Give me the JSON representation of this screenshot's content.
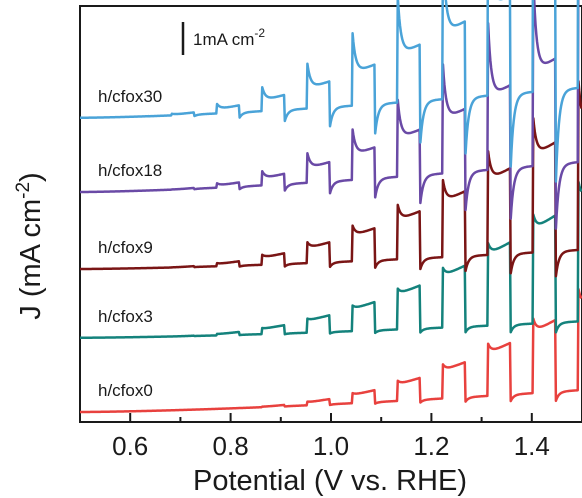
{
  "chart_data": {
    "type": "line",
    "xlabel": "Potential (V vs. RHE)",
    "ylabel_main": "J (mA cm",
    "ylabel_sup": "-2",
    "ylabel_close": ")",
    "xlim": [
      0.5,
      1.5
    ],
    "x_ticks": [
      {
        "value": 0.6,
        "label": "0.6"
      },
      {
        "value": 0.8,
        "label": "0.8"
      },
      {
        "value": 1.0,
        "label": "1.0"
      },
      {
        "value": 1.2,
        "label": "1.2"
      },
      {
        "value": 1.4,
        "label": "1.4"
      }
    ],
    "x_minor_ticks": [
      0.5,
      0.7,
      0.9,
      1.1,
      1.3,
      1.5
    ],
    "y_ticks_shown": false,
    "scale_bar": {
      "main": "1mA cm",
      "sup": "-2",
      "value_mA_cm2": 1
    },
    "chopped_light": {
      "period_V": 0.09,
      "first_on_V": 0.502,
      "duty": 0.5
    },
    "series": [
      {
        "name": "h/cfox0",
        "color": "#e8413e",
        "offset": 0.0,
        "onset": 0.8,
        "k": 3.4,
        "p": 2.2,
        "spike_ratio": 0.25,
        "dark_k": 0.4
      },
      {
        "name": "h/cfox3",
        "color": "#14827c",
        "offset": 1.35,
        "onset": 0.68,
        "k": 3.4,
        "p": 2.1,
        "spike_ratio": 0.18,
        "dark_k": 0.3
      },
      {
        "name": "h/cfox9",
        "color": "#7a1515",
        "offset": 2.6,
        "onset": 0.66,
        "k": 3.2,
        "p": 2.0,
        "spike_ratio": 0.45,
        "dark_k": 0.35
      },
      {
        "name": "h/cfox18",
        "color": "#6a4aa6",
        "offset": 4.0,
        "onset": 0.66,
        "k": 3.1,
        "p": 2.0,
        "spike_ratio": 1.2,
        "dark_k": 0.55
      },
      {
        "name": "h/cfox30",
        "color": "#4aa3d8",
        "offset": 5.35,
        "onset": 0.62,
        "k": 3.3,
        "p": 2.0,
        "spike_ratio": 1.45,
        "dark_k": 0.55
      }
    ]
  }
}
